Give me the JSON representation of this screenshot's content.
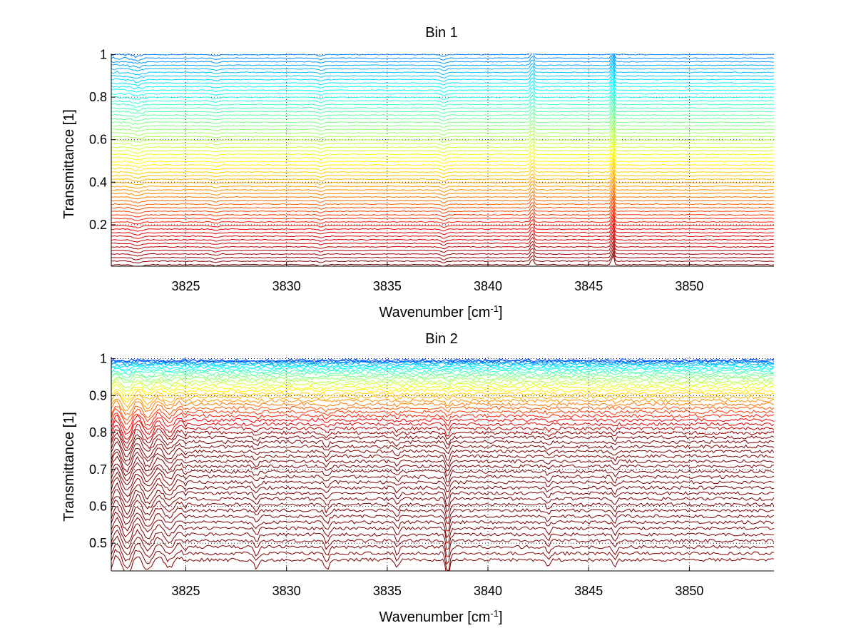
{
  "chart_data": [
    {
      "type": "line",
      "title": "Bin 1",
      "xlabel": "Wavenumber [cm",
      "xlabel_sup": "-1",
      "xlabel_end": "]",
      "ylabel": "Transmittance [1]",
      "xlim": [
        3821.3,
        3854.2
      ],
      "ylim": [
        0.005,
        1.005
      ],
      "xticks": [
        3825,
        3830,
        3835,
        3840,
        3845,
        3850
      ],
      "yticks": [
        0.2,
        0.4,
        0.6,
        0.8,
        1
      ],
      "grid": true,
      "series_description_count": 60,
      "series_levels": {
        "start": 1.0,
        "end": 0.012,
        "count": 60
      },
      "features": [
        {
          "x": 3846.2,
          "amplitude": 0.05,
          "width": 0.08
        },
        {
          "x": 3842.2,
          "amplitude": 0.03,
          "width": 0.1
        },
        {
          "x": 3837.8,
          "amplitude": -0.01,
          "width": 0.15
        },
        {
          "x": 3831.7,
          "amplitude": -0.008,
          "width": 0.15
        },
        {
          "x": 3826.5,
          "amplitude": -0.006,
          "width": 0.2
        },
        {
          "x": 3822.6,
          "amplitude": -0.01,
          "width": 0.3
        }
      ],
      "colormap": "jet"
    },
    {
      "type": "line",
      "title": "Bin 2",
      "xlabel": "Wavenumber [cm",
      "xlabel_sup": "-1",
      "xlabel_end": "]",
      "ylabel": "Transmittance [1]",
      "xlim": [
        3821.3,
        3854.2
      ],
      "ylim": [
        0.425,
        1.005
      ],
      "xticks": [
        3825,
        3830,
        3835,
        3840,
        3845,
        3850
      ],
      "yticks": [
        0.5,
        0.6,
        0.7,
        0.8,
        0.9,
        1
      ],
      "grid": true,
      "series_levels": {
        "start": 0.995,
        "end": 0.455,
        "count": 50
      },
      "features": [
        {
          "x": 3838.0,
          "amplitude": -0.025,
          "width": 0.12
        },
        {
          "x": 3832.0,
          "amplitude": -0.012,
          "width": 0.15
        },
        {
          "x": 3835.5,
          "amplitude": -0.01,
          "width": 0.12
        },
        {
          "x": 3843.0,
          "amplitude": -0.008,
          "width": 0.12
        },
        {
          "x": 3846.3,
          "amplitude": -0.01,
          "width": 0.12
        },
        {
          "x": 3828.5,
          "amplitude": -0.01,
          "width": 0.15
        }
      ],
      "colormap": "jet"
    }
  ]
}
